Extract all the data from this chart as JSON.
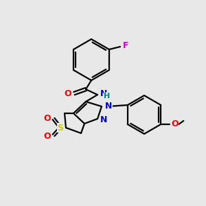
{
  "bg_color": "#e8e8e8",
  "bond_color": "#000000",
  "atom_colors": {
    "O": "#ff0000",
    "N": "#0000cc",
    "S": "#cccc00",
    "F": "#cc00cc",
    "H": "#008080",
    "C": "#000000"
  },
  "figsize": [
    3.0,
    3.0
  ],
  "dpi": 100
}
